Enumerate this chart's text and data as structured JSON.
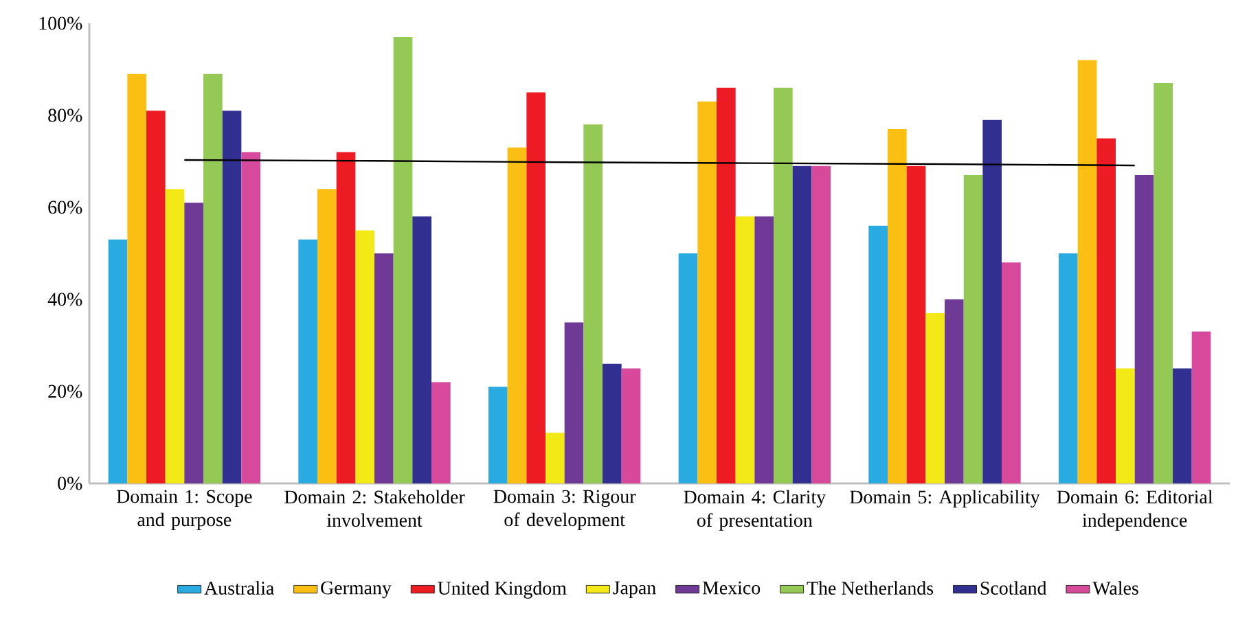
{
  "chart_data": {
    "type": "bar",
    "categories": [
      "Domain 1: Scope and purpose",
      "Domain 2: Stakeholder involvement",
      "Domain 3: Rigour of development",
      "Domain 4: Clarity of presentation",
      "Domain 5: Applicability",
      "Domain 6: Editorial independence"
    ],
    "series": [
      {
        "name": "Australia",
        "color": "#29abe2",
        "values": [
          53,
          53,
          21,
          50,
          56,
          50
        ]
      },
      {
        "name": "Germany",
        "color": "#fbbf14",
        "values": [
          89,
          64,
          73,
          83,
          77,
          92
        ]
      },
      {
        "name": "United Kingdom",
        "color": "#ed1c24",
        "values": [
          81,
          72,
          85,
          86,
          69,
          75
        ]
      },
      {
        "name": "Japan",
        "color": "#f2e916",
        "values": [
          64,
          55,
          11,
          58,
          37,
          25
        ]
      },
      {
        "name": "Mexico",
        "color": "#6f3996",
        "values": [
          61,
          50,
          35,
          58,
          40,
          67
        ]
      },
      {
        "name": "The Netherlands",
        "color": "#93c954",
        "values": [
          89,
          97,
          78,
          86,
          67,
          87
        ]
      },
      {
        "name": "Scotland",
        "color": "#313090",
        "values": [
          81,
          58,
          26,
          69,
          79,
          25
        ]
      },
      {
        "name": "Wales",
        "color": "#d7499a",
        "values": [
          72,
          22,
          25,
          69,
          48,
          33
        ]
      },
      {
        "type": "line",
        "color": "#000000",
        "values": [
          70.3,
          70.1,
          69.8,
          69.6,
          69.4,
          69.1
        ]
      }
    ],
    "ylim": [
      0,
      100
    ],
    "yticks": [
      {
        "value": 0,
        "label": "0%"
      },
      {
        "value": 20,
        "label": "20%"
      },
      {
        "value": 40,
        "label": "40%"
      },
      {
        "value": 60,
        "label": "60%"
      },
      {
        "value": 80,
        "label": "80%"
      },
      {
        "value": 100,
        "label": "100%"
      }
    ],
    "grid": false,
    "legend": "bottom"
  }
}
